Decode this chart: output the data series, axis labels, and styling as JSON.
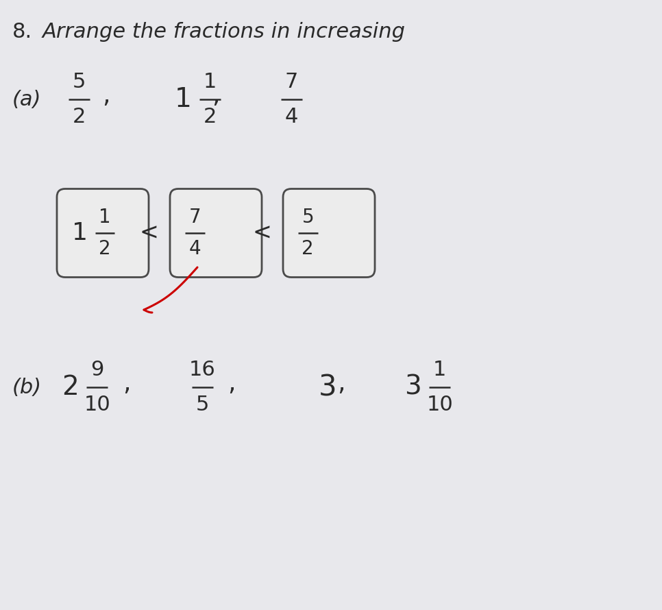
{
  "background_color": "#e8e8ec",
  "text_color": "#2a2a2a",
  "box_edge_color": "#4a4a4a",
  "box_face_color": "#ececec",
  "red_color": "#cc0000",
  "title_num": "8.",
  "title_text": "Arrange the fractions in increasing",
  "part_a_label": "(a)",
  "part_b_label": "(b)",
  "part_a_fractions": [
    {
      "whole": "",
      "num": "5",
      "den": "2"
    },
    {
      "whole": "1",
      "num": "1",
      "den": "2"
    },
    {
      "whole": "",
      "num": "7",
      "den": "4"
    }
  ],
  "answer_a": [
    {
      "whole": "1",
      "num": "1",
      "den": "2"
    },
    {
      "whole": "",
      "num": "7",
      "den": "4"
    },
    {
      "whole": "",
      "num": "5",
      "den": "2"
    }
  ],
  "part_b_fractions": [
    {
      "whole": "2",
      "num": "9",
      "den": "10"
    },
    {
      "whole": "",
      "num": "16",
      "den": "5"
    },
    {
      "whole": "",
      "num": "3",
      "den": ""
    },
    {
      "whole": "3",
      "num": "1",
      "den": "10"
    }
  ]
}
